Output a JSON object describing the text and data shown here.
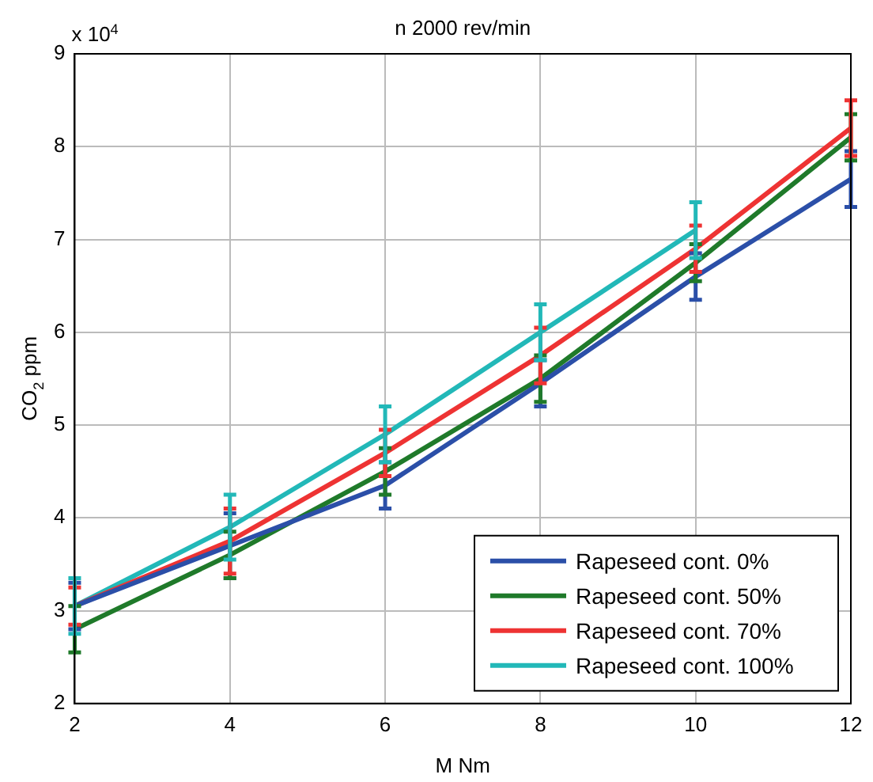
{
  "chart_data": {
    "type": "line",
    "title": "n 2000 rev/min",
    "xlabel": "M Nm",
    "ylabel": "CO$_{2}$ ppm",
    "x": [
      2,
      4,
      6,
      8,
      10,
      12
    ],
    "series": [
      {
        "name": "Rapeseed cont. 0%",
        "color": "#2b4fa8",
        "values": [
          3.05,
          3.7,
          4.35,
          5.45,
          6.6,
          7.65
        ],
        "errors": [
          0.25,
          0.35,
          0.25,
          0.25,
          0.25,
          0.3
        ]
      },
      {
        "name": "Rapeseed cont. 50%",
        "color": "#1f7a2a",
        "values": [
          2.8,
          3.6,
          4.5,
          5.5,
          6.75,
          8.1
        ],
        "errors": [
          0.25,
          0.25,
          0.25,
          0.25,
          0.2,
          0.25
        ]
      },
      {
        "name": "Rapeseed cont. 70%",
        "color": "#ee3333",
        "values": [
          3.05,
          3.75,
          4.7,
          5.75,
          6.9,
          8.2
        ],
        "errors": [
          0.2,
          0.35,
          0.25,
          0.3,
          0.25,
          0.3
        ]
      },
      {
        "name": "Rapeseed cont. 100%",
        "color": "#22b8b8",
        "values": [
          3.05,
          3.9,
          4.9,
          6.0,
          7.1,
          null
        ],
        "errors": [
          0.3,
          0.35,
          0.3,
          0.3,
          0.3,
          null
        ]
      }
    ],
    "xlim": [
      2,
      12
    ],
    "xticks": [
      2,
      4,
      6,
      8,
      10,
      12
    ],
    "ylim": [
      2,
      9
    ],
    "yticks": [
      2,
      3,
      4,
      5,
      6,
      7,
      8,
      9
    ],
    "grid": true,
    "legend": "bottom right",
    "marker": "none",
    "line_style": "solid",
    "annotations": [
      "x 10$^{4}$"
    ]
  }
}
